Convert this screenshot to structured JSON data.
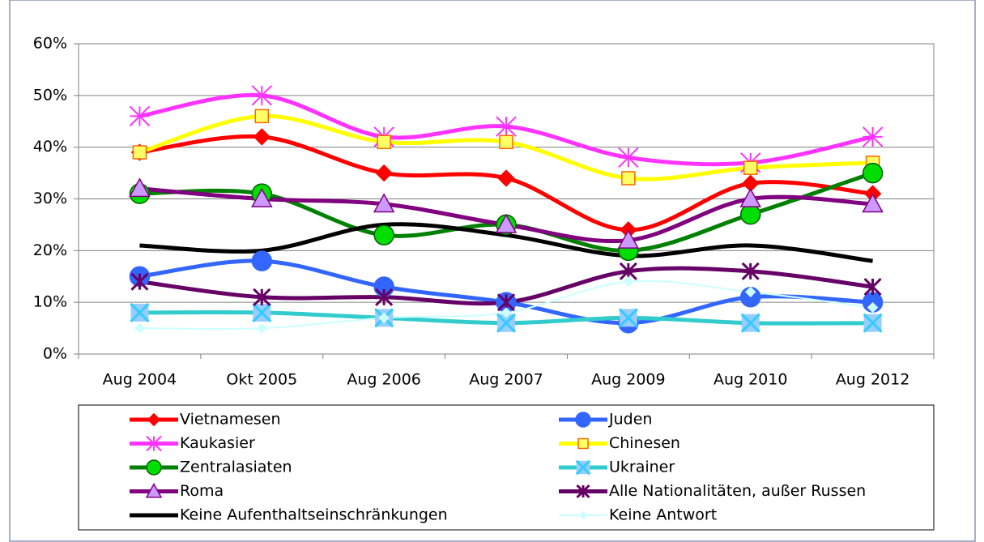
{
  "chart_data": {
    "type": "line",
    "smooth": true,
    "grid": true,
    "legend": "bottom",
    "categories": [
      "Aug 2004",
      "Okt 2005",
      "Aug 2006",
      "Aug 2007",
      "Aug 2009",
      "Aug 2010",
      "Aug 2012"
    ],
    "ylim": [
      0,
      60
    ],
    "yticks": [
      {
        "value": 0,
        "label": "0%"
      },
      {
        "value": 10,
        "label": "10%"
      },
      {
        "value": 20,
        "label": "20%"
      },
      {
        "value": 30,
        "label": "30%"
      },
      {
        "value": 40,
        "label": "40%"
      },
      {
        "value": 50,
        "label": "50%"
      },
      {
        "value": 60,
        "label": "60%"
      }
    ],
    "series": [
      {
        "name": "Vietnamesen",
        "color": "#ff0000",
        "marker": "diamond",
        "marker_fill": "#ff0000",
        "values": [
          39,
          42,
          35,
          34,
          24,
          33,
          31
        ]
      },
      {
        "name": "Juden",
        "color": "#3366ff",
        "marker": "circle",
        "marker_fill": "#3366ff",
        "values": [
          15,
          18,
          13,
          10,
          6,
          11,
          10
        ]
      },
      {
        "name": "Kaukasier",
        "color": "#ff33ff",
        "marker": "star",
        "marker_fill": "#ff33ff",
        "values": [
          46,
          50,
          42,
          44,
          38,
          37,
          42
        ]
      },
      {
        "name": "Chinesen",
        "color": "#ffff00",
        "marker": "square",
        "marker_fill": "#ffff66",
        "marker_stroke": "#ff6600",
        "values": [
          39,
          46,
          41,
          41,
          34,
          36,
          37
        ]
      },
      {
        "name": "Zentralasiaten",
        "color": "#008000",
        "marker": "circle",
        "marker_fill": "#00dd00",
        "marker_stroke": "#006000",
        "values": [
          31,
          31,
          23,
          25,
          20,
          27,
          35
        ]
      },
      {
        "name": "Ukrainer",
        "color": "#33cccc",
        "marker": "xsquare",
        "marker_fill": "#99ccff",
        "marker_stroke": "#33ccff",
        "values": [
          8,
          8,
          7,
          6,
          7,
          6,
          6
        ]
      },
      {
        "name": "Roma",
        "color": "#800080",
        "marker": "triangle",
        "marker_fill": "#cc99ff",
        "marker_stroke": "#800080",
        "values": [
          32,
          30,
          29,
          25,
          22,
          30,
          29
        ]
      },
      {
        "name": "Alle Nationalitäten, außer Russen",
        "color": "#660066",
        "marker": "asterisk",
        "marker_fill": "#660066",
        "values": [
          14,
          11,
          11,
          10,
          16,
          16,
          13
        ]
      },
      {
        "name": "Keine Aufenthaltseinschränkungen",
        "color": "#000000",
        "marker": "none",
        "values": [
          21,
          20,
          25,
          23,
          19,
          21,
          18
        ]
      },
      {
        "name": "Keine Antwort",
        "color": "#ccffff",
        "marker": "smalldiamond",
        "marker_fill": "#ccffff",
        "width": 2,
        "values": [
          5,
          5,
          7,
          8,
          14,
          12,
          9
        ]
      }
    ]
  }
}
